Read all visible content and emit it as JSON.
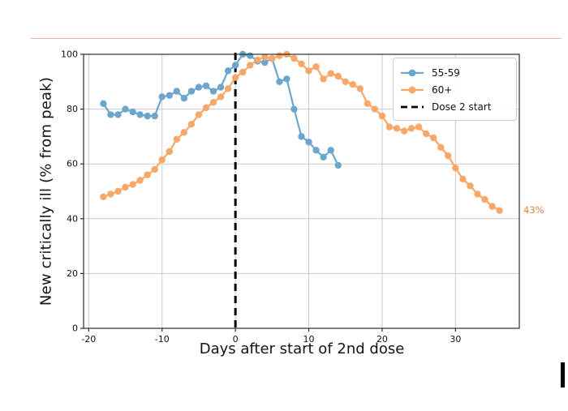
{
  "page": {
    "background": "#ffffff",
    "separator_color": "#f0b2a4"
  },
  "chart_data": {
    "type": "line",
    "title": "",
    "xlabel": "Days after start of 2nd dose",
    "ylabel": "New critically ill (% from peak)",
    "xlim": [
      -20.7,
      38.7
    ],
    "ylim": [
      0,
      100
    ],
    "x_ticks": [
      -20,
      -10,
      0,
      10,
      20,
      30
    ],
    "y_ticks": [
      0,
      20,
      40,
      60,
      80,
      100
    ],
    "grid": true,
    "grid_color": "#c9c9c9",
    "spine_color": "#2b2b2b",
    "legend_position": "upper right",
    "series": [
      {
        "name": "55-59",
        "color": "#6da6cc",
        "x": [
          -18,
          -17,
          -16,
          -15,
          -14,
          -13,
          -12,
          -11,
          -10,
          -9,
          -8,
          -7,
          -6,
          -5,
          -4,
          -3,
          -2,
          -1,
          0,
          1,
          2,
          3,
          4,
          5,
          6,
          7,
          8,
          9,
          10,
          11,
          12,
          13,
          14
        ],
        "values": [
          82,
          78,
          78,
          80,
          79,
          78,
          77.5,
          77.5,
          84.5,
          85,
          86.5,
          84,
          86.5,
          88,
          88.5,
          86.5,
          88,
          94,
          96,
          100,
          99.5,
          97.5,
          97,
          98.5,
          90,
          91,
          80,
          70,
          68,
          65,
          62.5,
          65,
          59.5
        ]
      },
      {
        "name": "60+",
        "color": "#f7a768",
        "x": [
          -18,
          -17,
          -16,
          -15,
          -14,
          -13,
          -12,
          -11,
          -10,
          -9,
          -8,
          -7,
          -6,
          -5,
          -4,
          -3,
          -2,
          -1,
          0,
          1,
          2,
          3,
          4,
          5,
          6,
          7,
          8,
          9,
          10,
          11,
          12,
          13,
          14,
          15,
          16,
          17,
          18,
          19,
          20,
          21,
          22,
          23,
          24,
          25,
          26,
          27,
          28,
          29,
          30,
          31,
          32,
          33,
          34,
          35,
          36
        ],
        "values": [
          48,
          49,
          50,
          51.5,
          52.5,
          54,
          56,
          58,
          61.5,
          64.5,
          69,
          71.5,
          74.5,
          78,
          80.5,
          82.5,
          84.5,
          87.5,
          91.5,
          93.5,
          96,
          98,
          99,
          98.5,
          99.5,
          100,
          98.5,
          96.5,
          94,
          95.5,
          91,
          93,
          92,
          90,
          89,
          87.5,
          82,
          80,
          77.5,
          73.5,
          73,
          72,
          73,
          73.5,
          71,
          69.5,
          66,
          63,
          58.5,
          54.5,
          52,
          49,
          47,
          44.5,
          43
        ]
      }
    ],
    "dose_line": {
      "x": 0,
      "label": "Dose 2 start",
      "color": "#000000",
      "style": "dashed"
    },
    "annotation": {
      "text": "43%",
      "y": 43,
      "color": "#e0823f"
    },
    "legend": {
      "items": [
        {
          "label": "55-59",
          "sample": "line-marker",
          "color": "#6da6cc"
        },
        {
          "label": "60+",
          "sample": "line-marker",
          "color": "#f7a768"
        },
        {
          "label": "Dose 2 start",
          "sample": "dashed-line",
          "color": "#000000"
        }
      ]
    }
  }
}
